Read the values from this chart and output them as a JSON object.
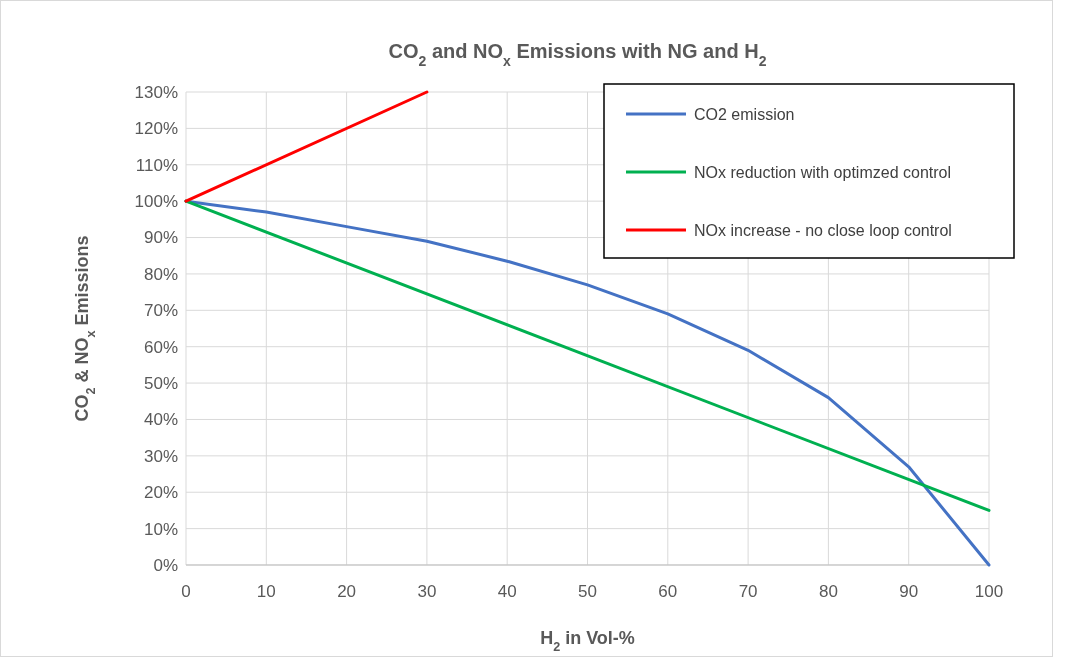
{
  "chart_data": {
    "type": "line",
    "title": "CO$_{2}$ and NO$_{x}$ Emissions with NG and H$_{2}$",
    "xlabel": "H$_{2}$ in Vol-%",
    "ylabel": "CO$_{2}$ & NO$_{x}$ Emissions",
    "xlim": [
      0,
      100
    ],
    "xticks": [
      0,
      10,
      20,
      30,
      40,
      50,
      60,
      70,
      80,
      90,
      100
    ],
    "ylim": [
      0,
      130
    ],
    "yticks": [
      {
        "value": 0,
        "label": "0%"
      },
      {
        "value": 10,
        "label": "10%"
      },
      {
        "value": 20,
        "label": "20%"
      },
      {
        "value": 30,
        "label": "30%"
      },
      {
        "value": 40,
        "label": "40%"
      },
      {
        "value": 50,
        "label": "50%"
      },
      {
        "value": 60,
        "label": "60%"
      },
      {
        "value": 70,
        "label": "70%"
      },
      {
        "value": 80,
        "label": "80%"
      },
      {
        "value": 90,
        "label": "90%"
      },
      {
        "value": 100,
        "label": "100%"
      },
      {
        "value": 110,
        "label": "110%"
      },
      {
        "value": 120,
        "label": "120%"
      },
      {
        "value": 130,
        "label": "130%"
      }
    ],
    "grid": true,
    "legend": "top right",
    "marker": "none",
    "line_style": "solid",
    "series": [
      {
        "name": "CO2 emission",
        "color": "#4472c4",
        "x": [
          0,
          10,
          20,
          30,
          40,
          50,
          60,
          70,
          80,
          90,
          100
        ],
        "values": [
          100,
          97,
          93,
          89,
          83.5,
          77,
          69,
          59,
          46,
          27,
          0
        ]
      },
      {
        "name": "NOx reduction with optimzed control",
        "color": "#00b050",
        "x": [
          0,
          100
        ],
        "values": [
          100,
          15
        ]
      },
      {
        "name": "NOx increase - no close loop control",
        "color": "#ff0000",
        "x": [
          0,
          30
        ],
        "values": [
          100,
          130
        ]
      }
    ]
  }
}
